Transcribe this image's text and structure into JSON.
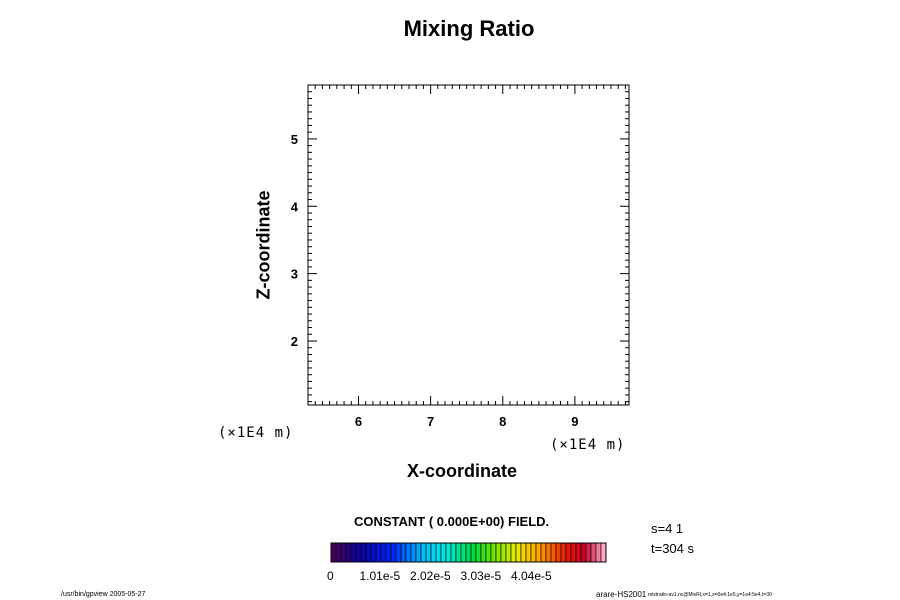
{
  "chart_data": {
    "type": "heatmap",
    "title": "Mixing Ratio",
    "xlabel": "X-coordinate",
    "ylabel": "Z-coordinate",
    "x_unit": "(×1E4 m)",
    "x_unit_repeat": "(×1E4 m)",
    "xlim": [
      5.3,
      9.75
    ],
    "ylim": [
      1.05,
      5.8
    ],
    "x_ticks": [
      "6",
      "7",
      "8",
      "9"
    ],
    "y_ticks": [
      "2",
      "3",
      "4",
      "5"
    ],
    "x_tick_values": [
      6,
      7,
      8,
      9
    ],
    "y_tick_values": [
      2,
      3,
      4,
      5
    ],
    "minor_tick_step": 0.1,
    "field_note": "CONSTANT ( 0.000E+00) FIELD.",
    "values": [],
    "colorbar": {
      "min_label": "0",
      "tick_labels": [
        "1.01e-5",
        "2.02e-5",
        "3.03e-5",
        "4.04e-5"
      ],
      "tick_values": [
        1.01e-05,
        2.02e-05,
        3.03e-05,
        4.04e-05
      ],
      "range": [
        0,
        5.5e-05
      ],
      "levels": 55,
      "colormap": "jet-like: dark purple → blue → cyan → green → yellow → red → pink"
    }
  },
  "annotations": {
    "step": "s=4 1",
    "time": "t=304 s"
  },
  "footer": {
    "left": "/usr/bin/gpview 2005-05-27",
    "right_main": "arare-HS2001",
    "right_small": "mixtratio-av1.nc@MixRt,x=1,x=0e4:1e5,y=1e4:5e4,t=30"
  },
  "colors": {
    "background": "#ffffff",
    "axes": "#000000"
  }
}
